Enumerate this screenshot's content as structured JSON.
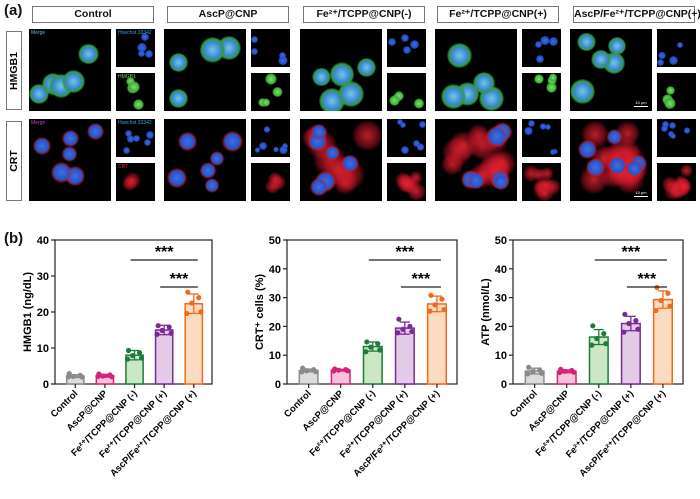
{
  "panel_a": {
    "label": "(a)",
    "columns": [
      "Control",
      "AscP@CNP",
      "Fe²⁺/TCPP@CNP(-)",
      "Fe²⁺/TCPP@CNP(+)",
      "AscP/Fe²⁺/TCPP@CNP(+)"
    ],
    "rows": [
      "HMGB1",
      "CRT"
    ],
    "tags": {
      "merge": "Merge",
      "hoechst": "Hoechst 33342",
      "hmgb1": "HMGB1",
      "crt": "CRT"
    },
    "scale_bar": "10 μm"
  },
  "panel_b": {
    "label": "(b)"
  },
  "colors": {
    "stroke": [
      "#8a8a8a",
      "#d4237a",
      "#1f7a3c",
      "#7a2a96",
      "#f06a1e"
    ],
    "fill": [
      "#dcdcdc",
      "#f7c3da",
      "#cbe7c6",
      "#e3cbe8",
      "#fcdcc0"
    ]
  },
  "chart_data": [
    {
      "type": "bar",
      "title": "",
      "ylabel": "HMGB1 (ng/dL)",
      "ylim": [
        0,
        40
      ],
      "yticks": [
        "0",
        "10",
        "20",
        "30",
        "40"
      ],
      "categories": [
        "Control",
        "AscP@CNP",
        "Fe²⁺/TCPP@CNP (-)",
        "Fe²⁺/TCPP@CNP (+)",
        "AscP/Fe²⁺/TCPP@CNP (+)"
      ],
      "values": [
        2.2,
        2.3,
        8.0,
        15.0,
        22.3
      ],
      "sd": [
        0.4,
        0.4,
        1.3,
        1.3,
        2.7
      ],
      "points": [
        [
          2.9,
          2.4,
          2.1,
          1.9,
          2.0
        ],
        [
          2.8,
          2.5,
          2.2,
          2.0,
          2.1
        ],
        [
          9.3,
          8.7,
          7.9,
          7.2,
          6.9
        ],
        [
          16.2,
          15.8,
          14.9,
          14.1,
          13.8
        ],
        [
          25.5,
          24.0,
          22.5,
          20.0,
          19.6
        ]
      ],
      "significance": [
        {
          "from": 2,
          "to": 4,
          "label": "***"
        },
        {
          "from": 3,
          "to": 4,
          "label": "***"
        }
      ]
    },
    {
      "type": "bar",
      "title": "",
      "ylabel": "CRT⁺ cells (%)",
      "ylim": [
        0,
        50
      ],
      "yticks": [
        "0",
        "10",
        "20",
        "30",
        "40",
        "50"
      ],
      "categories": [
        "Control",
        "AscP@CNP",
        "Fe²⁺/TCPP@CNP (-)",
        "Fe²⁺/TCPP@CNP (+)",
        "AscP/Fe²⁺/TCPP@CNP (+)"
      ],
      "values": [
        4.7,
        4.8,
        13.0,
        19.4,
        27.8
      ],
      "sd": [
        0.5,
        0.3,
        1.6,
        2.1,
        2.7
      ],
      "points": [
        [
          5.5,
          5.0,
          4.6,
          4.3,
          4.2
        ],
        [
          5.2,
          5.0,
          4.8,
          4.6,
          4.5
        ],
        [
          14.6,
          14.0,
          12.8,
          11.8,
          11.2
        ],
        [
          22.5,
          20.0,
          19.0,
          18.2,
          17.8
        ],
        [
          30.8,
          29.5,
          27.5,
          25.8,
          25.3
        ]
      ],
      "significance": [
        {
          "from": 2,
          "to": 4,
          "label": "***"
        },
        {
          "from": 3,
          "to": 4,
          "label": "***"
        }
      ]
    },
    {
      "type": "bar",
      "title": "",
      "ylabel": "ATP (nmol/L)",
      "ylim": [
        0,
        50
      ],
      "yticks": [
        "0",
        "10",
        "20",
        "30",
        "40",
        "50"
      ],
      "categories": [
        "Control",
        "AscP@CNP",
        "Fe²⁺/TCPP@CNP (-)",
        "Fe²⁺/TCPP@CNP (+)",
        "AscP/Fe²⁺/TCPP@CNP (+)"
      ],
      "values": [
        4.5,
        4.4,
        16.3,
        21.0,
        29.3
      ],
      "sd": [
        1.0,
        0.5,
        2.6,
        2.5,
        3.0
      ],
      "points": [
        [
          5.8,
          4.9,
          4.3,
          3.7,
          3.5
        ],
        [
          5.1,
          4.7,
          4.4,
          4.1,
          4.0
        ],
        [
          20.2,
          17.5,
          15.8,
          14.0,
          13.5
        ],
        [
          24.2,
          22.0,
          21.0,
          19.0,
          18.0
        ],
        [
          33.5,
          31.5,
          29.0,
          27.0,
          25.5
        ]
      ],
      "significance": [
        {
          "from": 2,
          "to": 4,
          "label": "***"
        },
        {
          "from": 3,
          "to": 4,
          "label": "***"
        }
      ]
    }
  ]
}
